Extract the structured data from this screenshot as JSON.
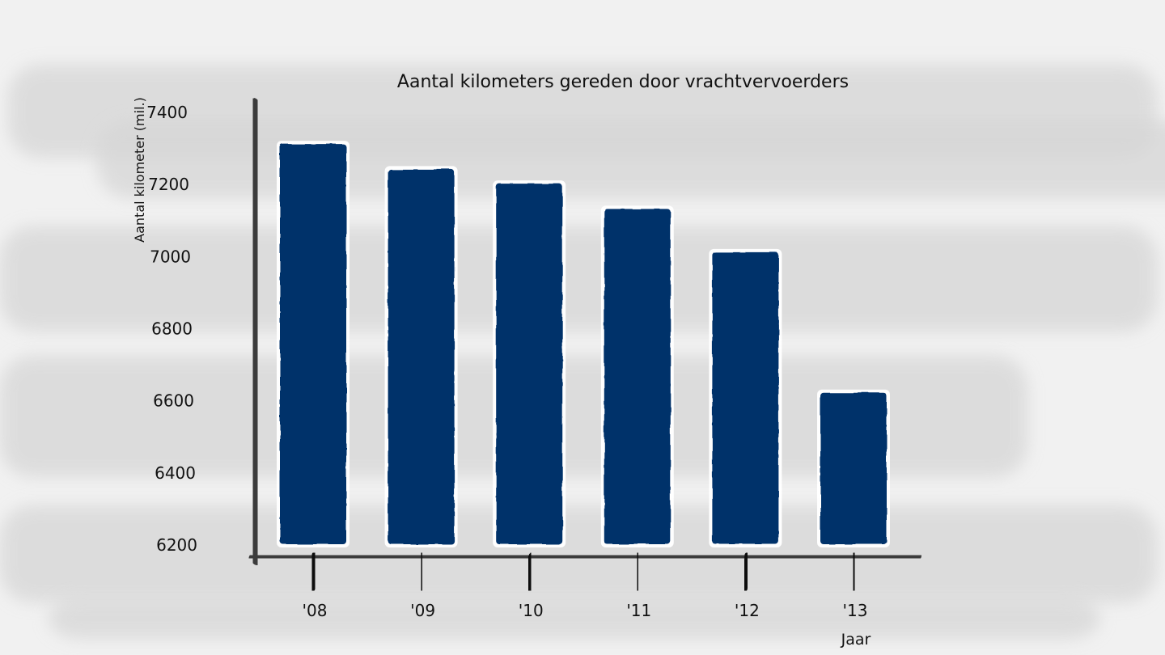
{
  "chart_data": {
    "type": "bar",
    "title": "Aantal kilometers gereden door vrachtvervoerders",
    "xlabel": "Jaar",
    "ylabel": "Aantal kilometer (mil.)",
    "categories": [
      "'08",
      "'09",
      "'10",
      "'11",
      "'12",
      "'13"
    ],
    "values": [
      7310,
      7240,
      7200,
      7130,
      7010,
      6620
    ],
    "yticks": [
      6200,
      6400,
      6600,
      6800,
      7000,
      7200,
      7400
    ],
    "ytick_labels": [
      "6200",
      "6400",
      "6600",
      "6800",
      "7000",
      "7200",
      "7400"
    ],
    "ylim": [
      6200,
      7400
    ],
    "grid": true,
    "legend": "none"
  },
  "colors": {
    "bar": "#05306b",
    "bar_outline": "#ffffff",
    "axis": "#3a3a3a",
    "grid": "#4a4a4a",
    "tick": "#0a0a0a",
    "background": "#f1f1f1",
    "brush": "#d6d6d6"
  }
}
